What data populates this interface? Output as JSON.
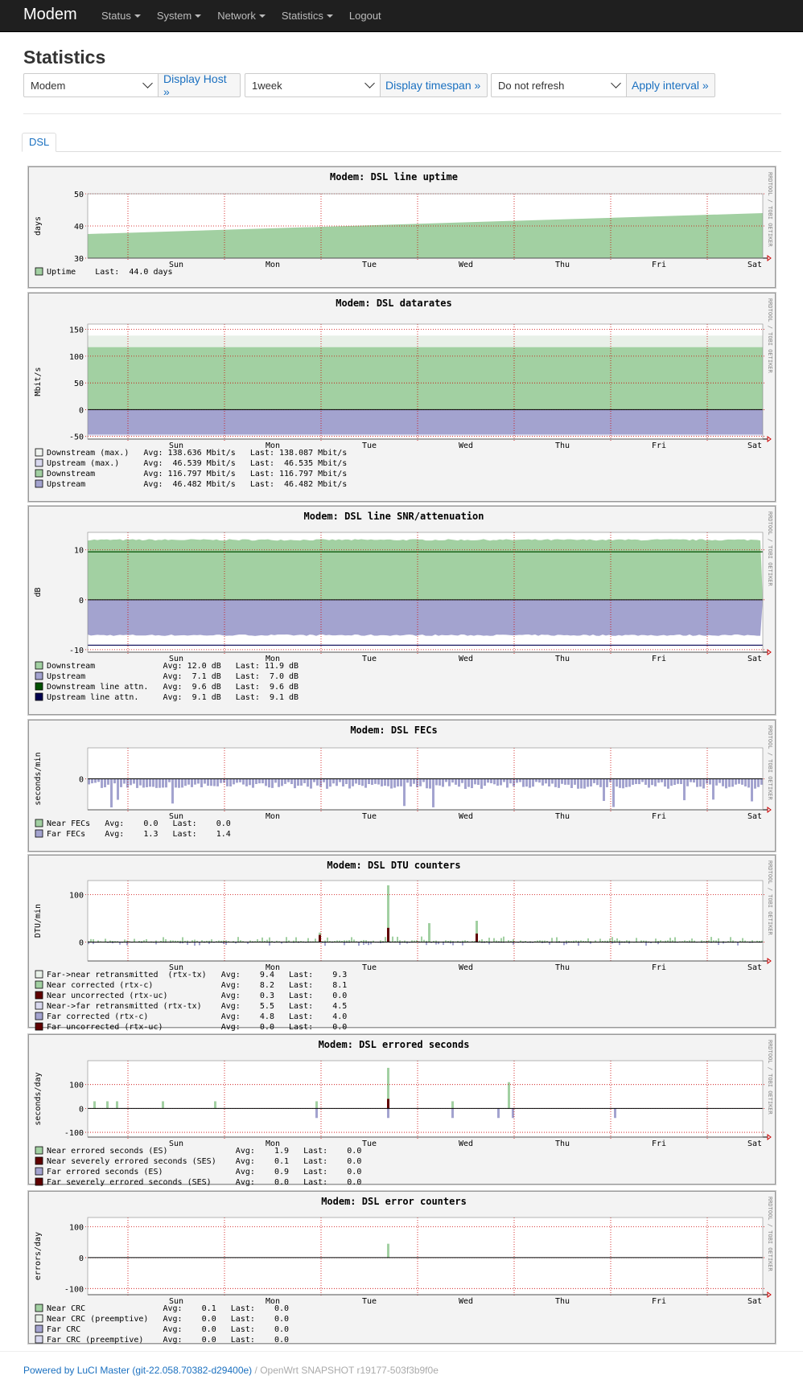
{
  "navbar": {
    "brand": "Modem",
    "menu": [
      {
        "label": "Status",
        "dropdown": true
      },
      {
        "label": "System",
        "dropdown": true
      },
      {
        "label": "Network",
        "dropdown": true
      },
      {
        "label": "Statistics",
        "dropdown": true
      },
      {
        "label": "Logout",
        "dropdown": false
      }
    ]
  },
  "page": {
    "title": "Statistics"
  },
  "controls": {
    "host": {
      "value": "Modem",
      "button": "Display Host »"
    },
    "timespan": {
      "value": "1week",
      "button": "Display timespan »"
    },
    "refresh": {
      "value": "Do not refresh",
      "button": "Apply interval »"
    }
  },
  "tabs": [
    {
      "label": "DSL",
      "active": true
    }
  ],
  "graph_common": {
    "days": [
      "Sun",
      "Mon",
      "Tue",
      "Wed",
      "Thu",
      "Fri",
      "Sat"
    ],
    "side_label": "RRDTOOL / TOBI OETIKER"
  },
  "graphs": [
    {
      "id": "uptime",
      "title": "Modem: DSL line uptime",
      "ylabel": "days",
      "ylim": [
        30,
        50
      ],
      "ticks": [
        50,
        40,
        30
      ],
      "kind": "uptime",
      "series": [
        {
          "name": "Uptime",
          "color": "#a2d0a2"
        }
      ],
      "legend": [
        "Uptime    Last:  44.0 days"
      ],
      "legend_colors": [
        "#a2d0a2"
      ]
    },
    {
      "id": "datarates",
      "title": "Modem: DSL datarates",
      "ylabel": "Mbit/s",
      "ylim": [
        -55,
        160
      ],
      "ticks": [
        150,
        100,
        50,
        0,
        -50
      ],
      "kind": "datarates",
      "series": [
        {
          "name": "Downstream (max.)",
          "color": "#e8f0e8"
        },
        {
          "name": "Upstream (max.)",
          "color": "#d8d8ee"
        },
        {
          "name": "Downstream",
          "color": "#a2d0a2"
        },
        {
          "name": "Upstream",
          "color": "#a3a3cf"
        }
      ],
      "legend": [
        "Downstream (max.)   Avg: 138.636 Mbit/s   Last: 138.087 Mbit/s",
        "Upstream (max.)     Avg:  46.539 Mbit/s   Last:  46.535 Mbit/s",
        "Downstream          Avg: 116.797 Mbit/s   Last: 116.797 Mbit/s",
        "Upstream            Avg:  46.482 Mbit/s   Last:  46.482 Mbit/s"
      ],
      "legend_colors": [
        "#f0f4f0",
        "#d8d8ee",
        "#a2d0a2",
        "#a3a3cf"
      ]
    },
    {
      "id": "snr",
      "title": "Modem: DSL line SNR/attenuation",
      "ylabel": "dB",
      "ylim": [
        -10.5,
        13.5
      ],
      "ticks": [
        10,
        0,
        -10
      ],
      "kind": "snr",
      "series": [
        {
          "name": "Downstream",
          "color": "#a2d0a2"
        },
        {
          "name": "Upstream",
          "color": "#a3a3cf"
        },
        {
          "name": "Downstream line attn.",
          "color": "#005000"
        },
        {
          "name": "Upstream line attn.",
          "color": "#000050"
        }
      ],
      "legend": [
        "Downstream              Avg: 12.0 dB   Last: 11.9 dB",
        "Upstream                Avg:  7.1 dB   Last:  7.0 dB",
        "Downstream line attn.   Avg:  9.6 dB   Last:  9.6 dB",
        "Upstream line attn.     Avg:  9.1 dB   Last:  9.1 dB"
      ],
      "legend_colors": [
        "#a2d0a2",
        "#a3a3cf",
        "#005000",
        "#000050"
      ]
    },
    {
      "id": "fec",
      "title": "Modem: DSL FECs",
      "ylabel": "seconds/min",
      "ylim": [
        -4,
        4
      ],
      "ticks": [
        0
      ],
      "kind": "fec",
      "series": [
        {
          "name": "Near FECs",
          "color": "#a2d0a2"
        },
        {
          "name": "Far FECs",
          "color": "#a3a3cf"
        }
      ],
      "legend": [
        "Near FECs   Avg:    0.0   Last:    0.0",
        "Far FECs    Avg:    1.3   Last:    1.4"
      ],
      "legend_colors": [
        "#a2d0a2",
        "#a3a3cf"
      ]
    },
    {
      "id": "dtu",
      "title": "Modem: DSL DTU counters",
      "ylabel": "DTU/min",
      "ylim": [
        -40,
        130
      ],
      "ticks": [
        100,
        0
      ],
      "kind": "dtu",
      "series": [
        {
          "name": "Far->near retransmitted (rtx-tx)",
          "color": "#a2d0a2"
        },
        {
          "name": "Near corrected (rtx-c)",
          "color": "#a2d0a2"
        },
        {
          "name": "Near uncorrected (rtx-uc)",
          "color": "#600000"
        },
        {
          "name": "Near->far retransmitted (rtx-tx)",
          "color": "#d8d8ee"
        },
        {
          "name": "Far corrected (rtx-c)",
          "color": "#a3a3cf"
        },
        {
          "name": "Far uncorrected (rtx-uc)",
          "color": "#600000"
        }
      ],
      "legend": [
        "Far->near retransmitted  (rtx-tx)   Avg:    9.4   Last:    9.3",
        "Near corrected (rtx-c)              Avg:    8.2   Last:    8.1",
        "Near uncorrected (rtx-uc)           Avg:    0.3   Last:    0.0",
        "Near->far retransmitted (rtx-tx)    Avg:    5.5   Last:    4.5",
        "Far corrected (rtx-c)               Avg:    4.8   Last:    4.0",
        "Far uncorrected (rtx-uc)            Avg:    0.0   Last:    0.0"
      ],
      "legend_colors": [
        "#e8f0e8",
        "#a2d0a2",
        "#600000",
        "#d8d8ee",
        "#a3a3cf",
        "#600000"
      ]
    },
    {
      "id": "es",
      "title": "Modem: DSL errored seconds",
      "ylabel": "seconds/day",
      "ylim": [
        -120,
        200
      ],
      "ticks": [
        100,
        0,
        -100
      ],
      "kind": "es",
      "series": [
        {
          "name": "Near errored seconds (ES)",
          "color": "#a2d0a2"
        },
        {
          "name": "Near severely errored seconds (SES)",
          "color": "#600000"
        },
        {
          "name": "Far errored seconds (ES)",
          "color": "#a3a3cf"
        },
        {
          "name": "Far severely errored seconds (SES)",
          "color": "#600000"
        }
      ],
      "legend": [
        "Near errored seconds (ES)              Avg:    1.9   Last:    0.0",
        "Near severely errored seconds (SES)    Avg:    0.1   Last:    0.0",
        "Far errored seconds (ES)               Avg:    0.9   Last:    0.0",
        "Far severely errored seconds (SES)     Avg:    0.0   Last:    0.0"
      ],
      "legend_colors": [
        "#a2d0a2",
        "#600000",
        "#a3a3cf",
        "#600000"
      ]
    },
    {
      "id": "errc",
      "title": "Modem: DSL error counters",
      "ylabel": "errors/day",
      "ylim": [
        -120,
        130
      ],
      "ticks": [
        100,
        0,
        -100
      ],
      "kind": "errc",
      "series": [
        {
          "name": "Near CRC",
          "color": "#a2d0a2"
        },
        {
          "name": "Near CRC (preemptive)",
          "color": "#e8f0e8"
        },
        {
          "name": "Far CRC",
          "color": "#a3a3cf"
        },
        {
          "name": "Far CRC (preemptive)",
          "color": "#d8d8ee"
        }
      ],
      "legend": [
        "Near CRC                Avg:    0.1   Last:    0.0",
        "Near CRC (preemptive)   Avg:    0.0   Last:    0.0",
        "Far CRC                 Avg:    0.0   Last:    0.0",
        "Far CRC (preemptive)    Avg:    0.0   Last:    0.0"
      ],
      "legend_colors": [
        "#a2d0a2",
        "#e8f0e8",
        "#a3a3cf",
        "#d8d8ee"
      ]
    }
  ],
  "footer": {
    "link": "Powered by LuCI Master (git-22.058.70382-d29400e)",
    "rest": " / OpenWrt SNAPSHOT r19177-503f3b9f0e"
  }
}
